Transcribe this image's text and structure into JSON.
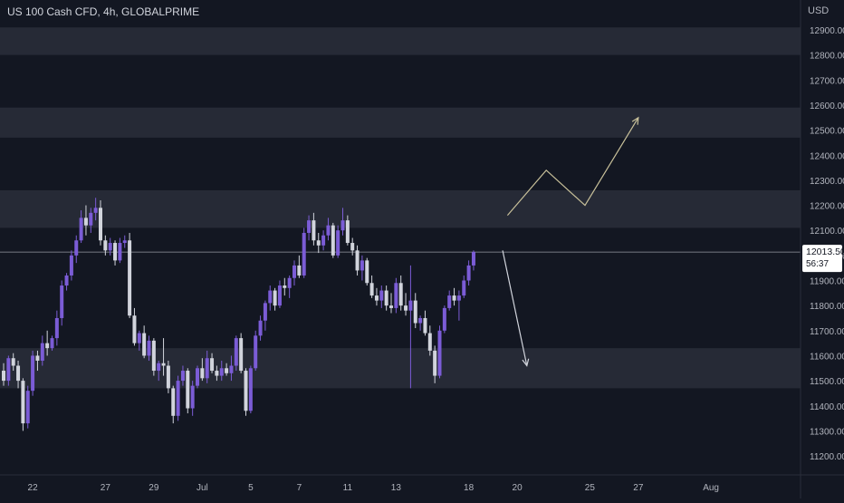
{
  "header": {
    "title": "US 100 Cash CFD, 4h, GLOBALPRIME",
    "currency": "USD"
  },
  "price_tag": {
    "price": "12013.50",
    "countdown": "56:37"
  },
  "colors": {
    "background": "#131722",
    "zone": "#262a36",
    "up_candle": "#7b5cd6",
    "down_candle": "#d1d4dc",
    "arrow_up": "#c8c09a",
    "arrow_down": "#d1d4dc",
    "axis_text": "#b2b5be"
  },
  "chart_data": {
    "type": "candlestick",
    "title": "US 100 Cash CFD, 4h, GLOBALPRIME",
    "ylabel": "USD",
    "ylim": [
      11120,
      13020
    ],
    "y_ticks": [
      11200,
      11300,
      11400,
      11500,
      11600,
      11700,
      11800,
      11900,
      12000,
      12100,
      12200,
      12300,
      12400,
      12500,
      12600,
      12700,
      12800,
      12900
    ],
    "y_tick_labels": [
      "11200.00",
      "11300.00",
      "11400.00",
      "11500.00",
      "11600.00",
      "11700.00",
      "11800.00",
      "11900.00",
      "12000.00",
      "12100.00",
      "12200.00",
      "12300.00",
      "12400.00",
      "12500.00",
      "12600.00",
      "12700.00",
      "12800.00",
      "12900.00"
    ],
    "x_tick_labels": [
      "22",
      "27",
      "29",
      "Jul",
      "5",
      "7",
      "11",
      "13",
      "18",
      "20",
      "25",
      "27",
      "Aug"
    ],
    "x_tick_slots": [
      6,
      21,
      31,
      41,
      51,
      61,
      71,
      81,
      96,
      106,
      121,
      131,
      146
    ],
    "current_price": 12013.5,
    "grid": false,
    "zones": [
      {
        "low": 12800,
        "high": 12910
      },
      {
        "low": 12470,
        "high": 12590
      },
      {
        "low": 12110,
        "high": 12260
      },
      {
        "low": 11470,
        "high": 11630
      }
    ],
    "candles": [
      [
        11540,
        11570,
        11480,
        11500
      ],
      [
        11500,
        11600,
        11480,
        11590
      ],
      [
        11590,
        11610,
        11540,
        11560
      ],
      [
        11560,
        11580,
        11470,
        11500
      ],
      [
        11500,
        11510,
        11300,
        11330
      ],
      [
        11330,
        11480,
        11310,
        11460
      ],
      [
        11460,
        11620,
        11440,
        11600
      ],
      [
        11600,
        11620,
        11540,
        11580
      ],
      [
        11580,
        11680,
        11560,
        11650
      ],
      [
        11650,
        11700,
        11600,
        11630
      ],
      [
        11630,
        11680,
        11620,
        11670
      ],
      [
        11670,
        11780,
        11640,
        11750
      ],
      [
        11750,
        11900,
        11720,
        11880
      ],
      [
        11880,
        11930,
        11860,
        11920
      ],
      [
        11920,
        12020,
        11900,
        12000
      ],
      [
        12000,
        12080,
        11970,
        12060
      ],
      [
        12060,
        12180,
        12050,
        12150
      ],
      [
        12150,
        12200,
        12080,
        12120
      ],
      [
        12120,
        12190,
        12090,
        12170
      ],
      [
        12170,
        12230,
        12140,
        12190
      ],
      [
        12190,
        12220,
        12040,
        12060
      ],
      [
        12060,
        12080,
        12000,
        12020
      ],
      [
        12020,
        12070,
        12000,
        12050
      ],
      [
        12050,
        12060,
        11960,
        11980
      ],
      [
        11980,
        12070,
        11970,
        12050
      ],
      [
        12050,
        12080,
        12030,
        12060
      ],
      [
        12060,
        12090,
        11750,
        11760
      ],
      [
        11760,
        11790,
        11640,
        11650
      ],
      [
        11650,
        11700,
        11620,
        11690
      ],
      [
        11690,
        11720,
        11590,
        11600
      ],
      [
        11600,
        11680,
        11580,
        11660
      ],
      [
        11660,
        11670,
        11520,
        11540
      ],
      [
        11540,
        11580,
        11500,
        11570
      ],
      [
        11570,
        11670,
        11520,
        11560
      ],
      [
        11560,
        11580,
        11450,
        11470
      ],
      [
        11470,
        11480,
        11330,
        11360
      ],
      [
        11360,
        11520,
        11340,
        11500
      ],
      [
        11500,
        11560,
        11480,
        11540
      ],
      [
        11540,
        11550,
        11370,
        11390
      ],
      [
        11390,
        11500,
        11360,
        11480
      ],
      [
        11480,
        11560,
        11470,
        11550
      ],
      [
        11550,
        11590,
        11500,
        11510
      ],
      [
        11510,
        11620,
        11490,
        11590
      ],
      [
        11590,
        11610,
        11530,
        11540
      ],
      [
        11540,
        11560,
        11500,
        11520
      ],
      [
        11520,
        11580,
        11500,
        11550
      ],
      [
        11550,
        11570,
        11520,
        11530
      ],
      [
        11530,
        11600,
        11500,
        11560
      ],
      [
        11560,
        11680,
        11540,
        11670
      ],
      [
        11670,
        11690,
        11530,
        11540
      ],
      [
        11540,
        11550,
        11360,
        11380
      ],
      [
        11380,
        11560,
        11370,
        11550
      ],
      [
        11550,
        11700,
        11540,
        11680
      ],
      [
        11680,
        11760,
        11660,
        11740
      ],
      [
        11740,
        11820,
        11700,
        11810
      ],
      [
        11810,
        11880,
        11780,
        11860
      ],
      [
        11860,
        11870,
        11780,
        11800
      ],
      [
        11800,
        11900,
        11790,
        11880
      ],
      [
        11880,
        11910,
        11840,
        11870
      ],
      [
        11870,
        11920,
        11830,
        11910
      ],
      [
        11910,
        11980,
        11880,
        11960
      ],
      [
        11960,
        12000,
        11910,
        11920
      ],
      [
        11920,
        12110,
        11910,
        12090
      ],
      [
        12090,
        12160,
        12060,
        12140
      ],
      [
        12140,
        12170,
        12040,
        12060
      ],
      [
        12060,
        12090,
        12010,
        12040
      ],
      [
        12040,
        12100,
        12020,
        12080
      ],
      [
        12080,
        12150,
        12060,
        12120
      ],
      [
        12120,
        12130,
        11990,
        12000
      ],
      [
        12000,
        12120,
        11990,
        12100
      ],
      [
        12100,
        12190,
        12080,
        12140
      ],
      [
        12140,
        12160,
        12040,
        12050
      ],
      [
        12050,
        12070,
        12000,
        12020
      ],
      [
        12020,
        12040,
        11920,
        11940
      ],
      [
        11940,
        12000,
        11900,
        11980
      ],
      [
        11980,
        11990,
        11880,
        11890
      ],
      [
        11890,
        11920,
        11830,
        11840
      ],
      [
        11840,
        11870,
        11800,
        11820
      ],
      [
        11820,
        11880,
        11790,
        11860
      ],
      [
        11860,
        11880,
        11780,
        11800
      ],
      [
        11800,
        11850,
        11770,
        11790
      ],
      [
        11790,
        11910,
        11770,
        11890
      ],
      [
        11890,
        11920,
        11780,
        11800
      ],
      [
        11800,
        11850,
        11760,
        11780
      ],
      [
        11780,
        11960,
        11470,
        11820
      ],
      [
        11820,
        11850,
        11710,
        11730
      ],
      [
        11730,
        11760,
        11700,
        11750
      ],
      [
        11750,
        11780,
        11680,
        11690
      ],
      [
        11690,
        11720,
        11600,
        11620
      ],
      [
        11620,
        11640,
        11490,
        11520
      ],
      [
        11520,
        11720,
        11510,
        11700
      ],
      [
        11700,
        11800,
        11690,
        11790
      ],
      [
        11790,
        11860,
        11780,
        11840
      ],
      [
        11840,
        11870,
        11800,
        11820
      ],
      [
        11820,
        11860,
        11740,
        11840
      ],
      [
        11840,
        11920,
        11830,
        11900
      ],
      [
        11900,
        11980,
        11880,
        11960
      ],
      [
        11960,
        12020,
        11940,
        12013.5
      ]
    ],
    "drawings": [
      {
        "type": "path",
        "direction": "up",
        "points": [
          [
            104,
            12160
          ],
          [
            112,
            12340
          ],
          [
            120,
            12200
          ],
          [
            131,
            12550
          ]
        ]
      },
      {
        "type": "arrow",
        "direction": "down",
        "points": [
          [
            103,
            12020
          ],
          [
            108,
            11560
          ]
        ]
      }
    ]
  }
}
